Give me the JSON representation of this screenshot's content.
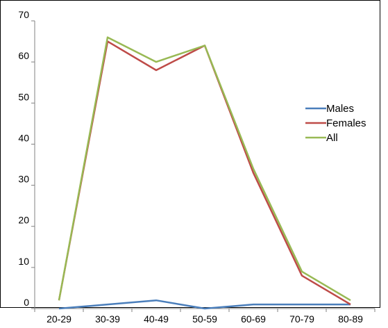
{
  "chart_data": {
    "type": "line",
    "title": "",
    "xlabel": "",
    "ylabel": "",
    "categories": [
      "20-29",
      "30-39",
      "40-49",
      "50-59",
      "60-69",
      "70-79",
      "80-89"
    ],
    "ylim": [
      0,
      70
    ],
    "yticks": [
      "0",
      "10",
      "20",
      "30",
      "40",
      "50",
      "60",
      "70"
    ],
    "grid": false,
    "legend_position": "right",
    "series": [
      {
        "name": "Males",
        "color": "#4a7ebb",
        "values": [
          0,
          1,
          2,
          0,
          1,
          1,
          1
        ]
      },
      {
        "name": "Females",
        "color": "#be4b48",
        "values": [
          2,
          65,
          58,
          64,
          33,
          8,
          1
        ]
      },
      {
        "name": "All",
        "color": "#98b954",
        "values": [
          2,
          66,
          60,
          64,
          34,
          9,
          2
        ]
      }
    ]
  }
}
